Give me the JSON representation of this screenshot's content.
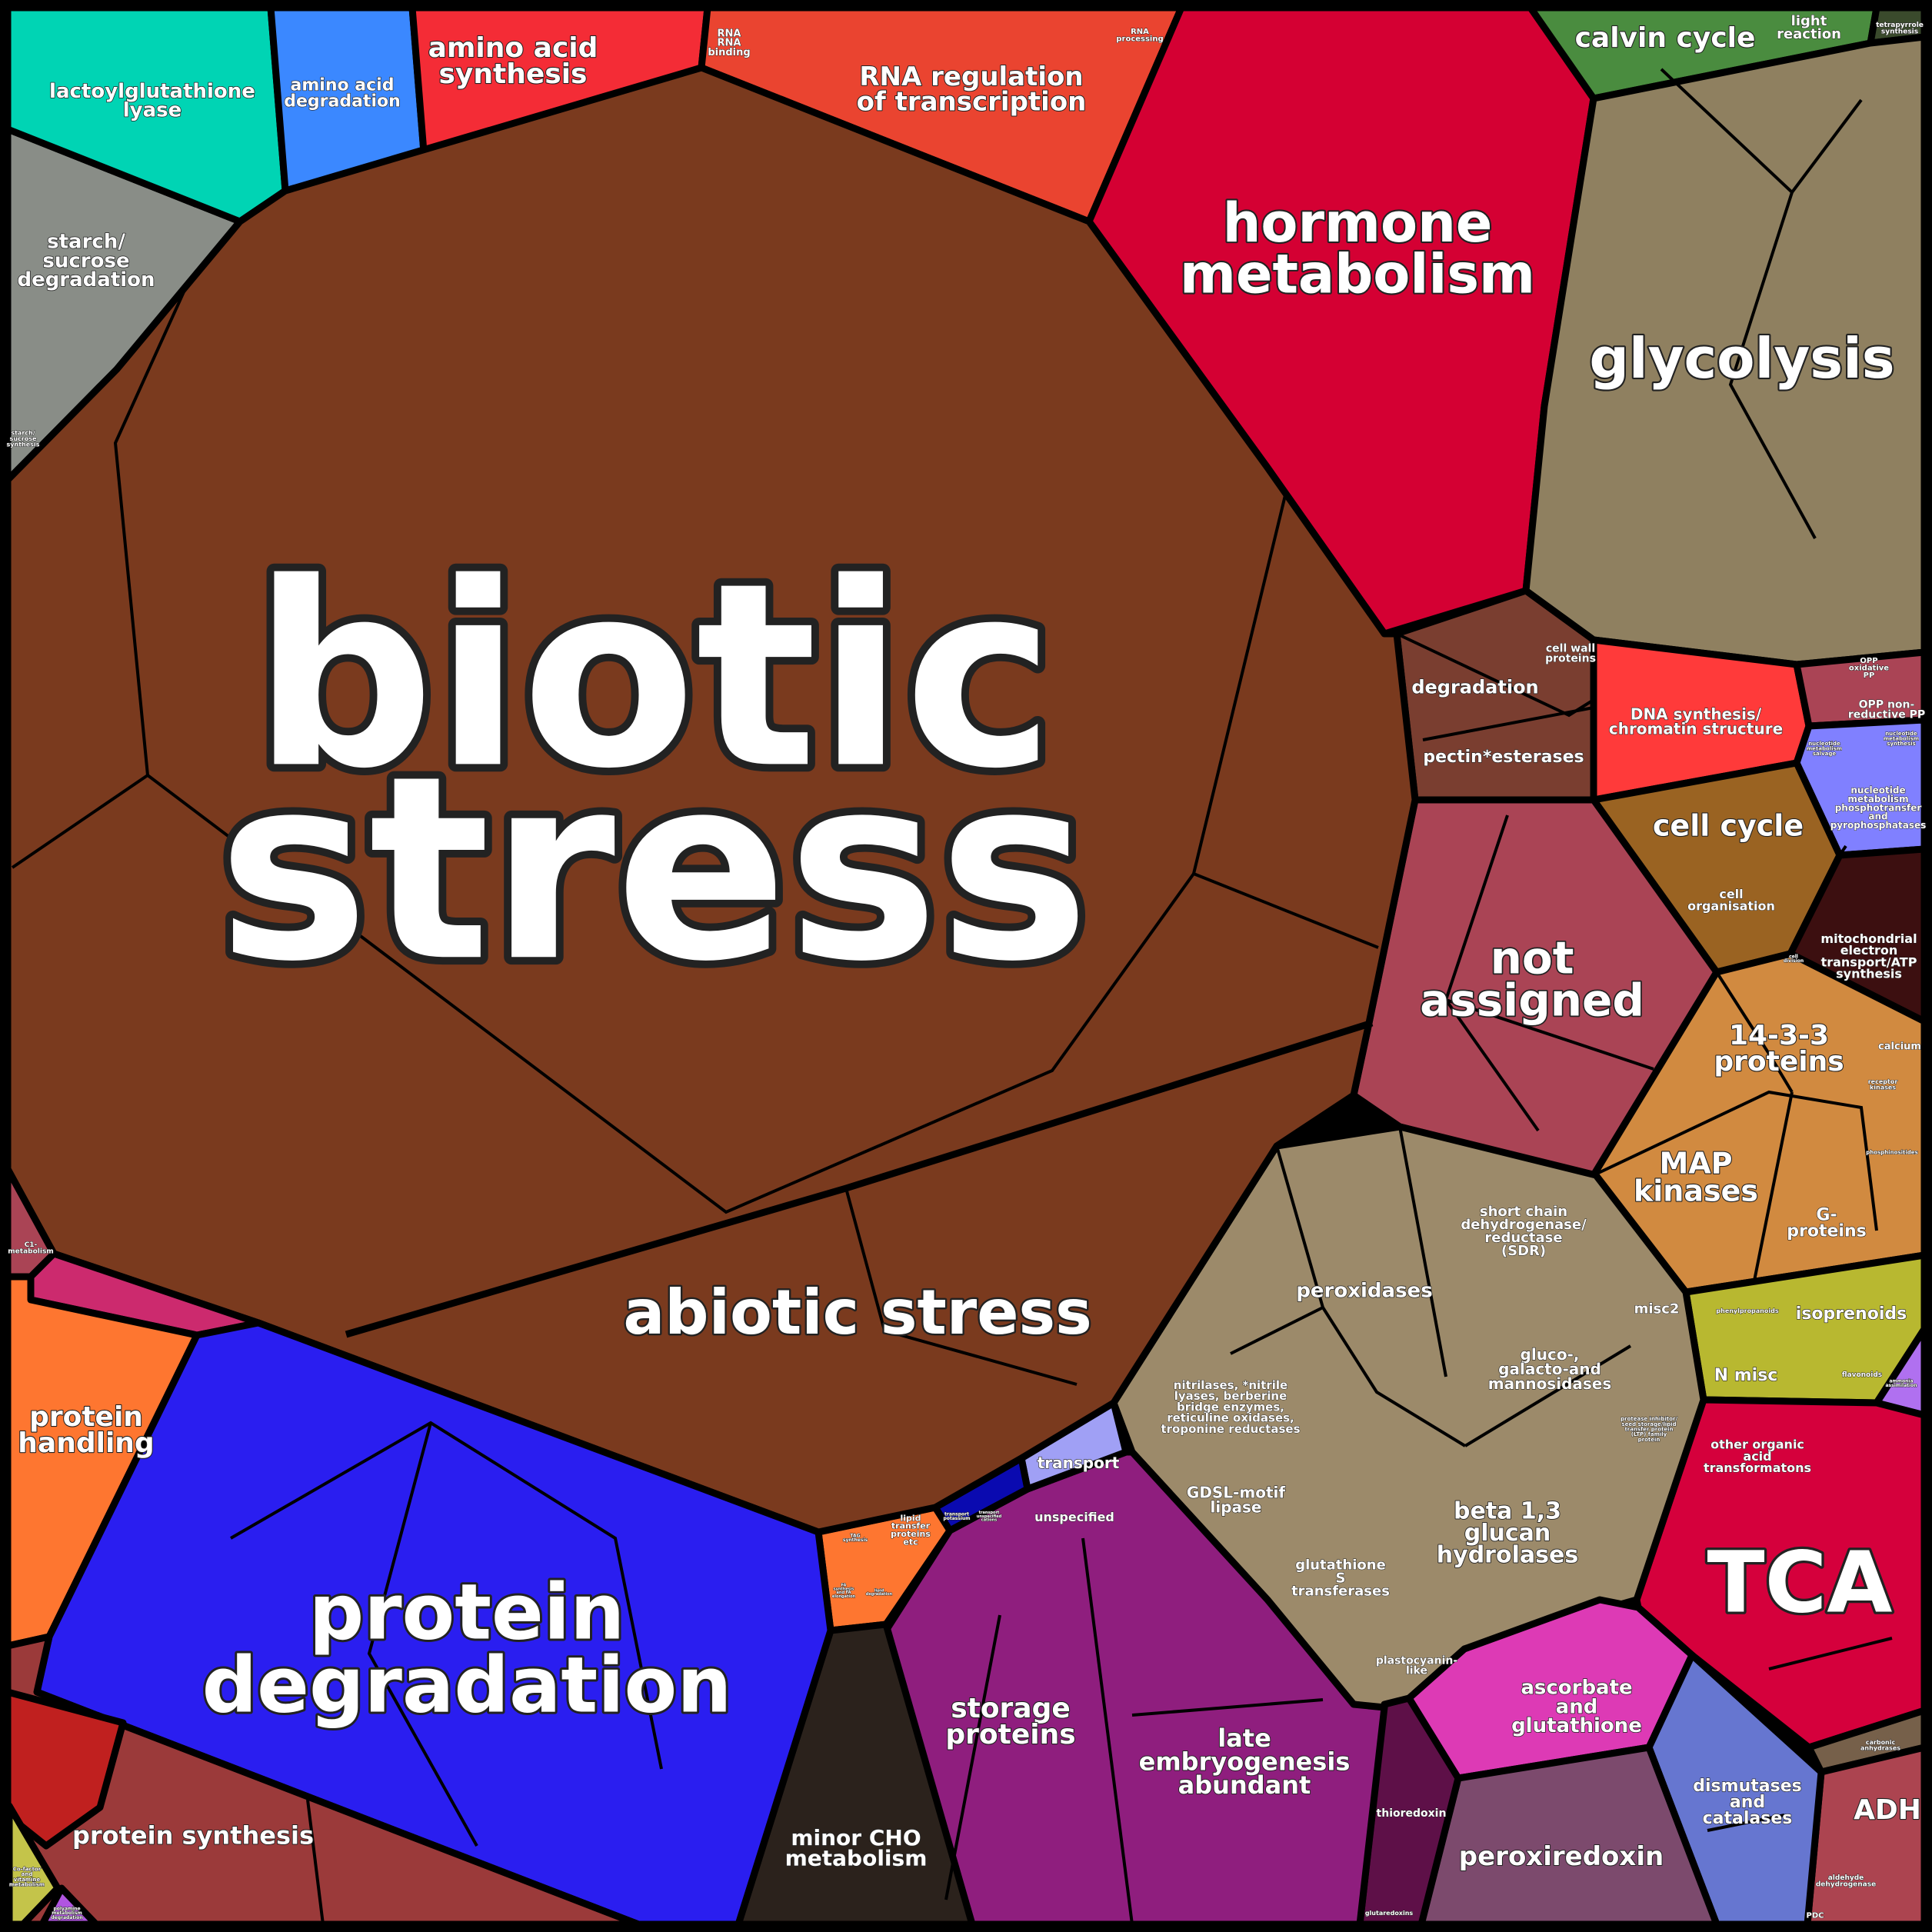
{
  "chart_data": {
    "type": "treemap",
    "subtype": "voronoi",
    "title": "",
    "cells": [
      {
        "id": "biotic-stress",
        "lines": [
          "biotic",
          "stress"
        ],
        "color": "#7a3a1e"
      },
      {
        "id": "abiotic-stress",
        "lines": [
          "abiotic stress"
        ],
        "color": "#7a3a1e"
      },
      {
        "id": "hormone-metabolism",
        "lines": [
          "hormone",
          "metabolism"
        ],
        "color": "#d40033"
      },
      {
        "id": "glycolysis",
        "lines": [
          "glycolysis"
        ],
        "color": "#8f8060"
      },
      {
        "id": "calvin-cycle",
        "lines": [
          "calvin cycle"
        ],
        "color": "#4a8c3f"
      },
      {
        "id": "light-reaction",
        "lines": [
          "light",
          "reaction"
        ],
        "color": "#4a8c3f"
      },
      {
        "id": "tetrapyrrole-synthesis",
        "lines": [
          "tetrapyrrole",
          "synthesis"
        ],
        "color": "#3a4a2c"
      },
      {
        "id": "rna-regulation",
        "lines": [
          "RNA regulation",
          "of transcription"
        ],
        "color": "#ea4430"
      },
      {
        "id": "rna-binding",
        "lines": [
          "RNA",
          "RNA",
          "binding"
        ],
        "color": "#ea4430"
      },
      {
        "id": "rna-processing",
        "lines": [
          "RNA",
          "processing"
        ],
        "color": "#ea4430"
      },
      {
        "id": "amino-acid-synthesis",
        "lines": [
          "amino acid",
          "synthesis"
        ],
        "color": "#f42c36"
      },
      {
        "id": "amino-acid-degradation",
        "lines": [
          "amino acid",
          "degradation"
        ],
        "color": "#3b88ff"
      },
      {
        "id": "lactoylglutathione-lyase",
        "lines": [
          "lactoylglutathione",
          "lyase"
        ],
        "color": "#00d4b4"
      },
      {
        "id": "starch-sucrose-degradation",
        "lines": [
          "starch/",
          "sucrose",
          "degradation"
        ],
        "color": "#898d87"
      },
      {
        "id": "starch-sucrose-synthesis",
        "lines": [
          "starch/",
          "sucrose",
          "synthesis"
        ],
        "color": "#898d87"
      },
      {
        "id": "degradation",
        "lines": [
          "degradation"
        ],
        "color": "#7a3e30"
      },
      {
        "id": "cell-wall-proteins",
        "lines": [
          "cell wall",
          "proteins"
        ],
        "color": "#7a3e30"
      },
      {
        "id": "pectin-esterases",
        "lines": [
          "pectin*esterases"
        ],
        "color": "#7a3e30"
      },
      {
        "id": "dna-synthesis",
        "lines": [
          "DNA synthesis/",
          "chromatin structure"
        ],
        "color": "#ff3a3a"
      },
      {
        "id": "opp-oxidative",
        "lines": [
          "OPP",
          "oxidative",
          "PP"
        ],
        "color": "#aa4455"
      },
      {
        "id": "opp-nonreductive",
        "lines": [
          "OPP non-",
          "reductive PP"
        ],
        "color": "#aa4455"
      },
      {
        "id": "nucleotide-salvage",
        "lines": [
          "nucleotide",
          "metabolism",
          "salvage"
        ],
        "color": "#8080ff"
      },
      {
        "id": "nucleotide-synthesis",
        "lines": [
          "nucleotide",
          "metabolism",
          "synthesis"
        ],
        "color": "#8080ff"
      },
      {
        "id": "nucleotide-phosphotransfer",
        "lines": [
          "nucleotide",
          "metabolism",
          "phosphotransfer",
          "and",
          "pyrophosphatases"
        ],
        "color": "#8080ff"
      },
      {
        "id": "cell-cycle",
        "lines": [
          "cell cycle"
        ],
        "color": "#9a6322"
      },
      {
        "id": "cell-organisation",
        "lines": [
          "cell",
          "organisation"
        ],
        "color": "#9a6322"
      },
      {
        "id": "cell-division",
        "lines": [
          "cell",
          "division"
        ],
        "color": "#9a6322"
      },
      {
        "id": "mitochondrial-electron-transport",
        "lines": [
          "mitochondrial",
          "electron",
          "transport/ATP",
          "synthesis"
        ],
        "color": "#3c0f10"
      },
      {
        "id": "not-assigned",
        "lines": [
          "not",
          "assigned"
        ],
        "color": "#aa4455"
      },
      {
        "id": "14-3-3-proteins",
        "lines": [
          "14-3-3",
          "proteins"
        ],
        "color": "#d18a40"
      },
      {
        "id": "calcium",
        "lines": [
          "calcium"
        ],
        "color": "#d18a40"
      },
      {
        "id": "receptor-kinases",
        "lines": [
          "receptor",
          "kinases"
        ],
        "color": "#d18a40"
      },
      {
        "id": "phosphinositides",
        "lines": [
          "phosphinositides"
        ],
        "color": "#d18a40"
      },
      {
        "id": "map-kinases",
        "lines": [
          "MAP",
          "kinases"
        ],
        "color": "#d18a40"
      },
      {
        "id": "g-proteins",
        "lines": [
          "G-",
          "proteins"
        ],
        "color": "#d18a40"
      },
      {
        "id": "phenylpropanoids",
        "lines": [
          "phenylpropanoids"
        ],
        "color": "#e4ac20"
      },
      {
        "id": "isoprenoids",
        "lines": [
          "isoprenoids"
        ],
        "color": "#b8b830"
      },
      {
        "id": "n-misc",
        "lines": [
          "N misc"
        ],
        "color": "#b8b830"
      },
      {
        "id": "flavonoids",
        "lines": [
          "flavonoids"
        ],
        "color": "#b8b830"
      },
      {
        "id": "ammonia-assimilation",
        "lines": [
          "ammonia",
          "assimilation"
        ],
        "color": "#b070f0"
      },
      {
        "id": "other-organic-acid",
        "lines": [
          "other organic",
          "acid",
          "transformatons"
        ],
        "color": "#d5003c"
      },
      {
        "id": "tca",
        "lines": [
          "TCA"
        ],
        "color": "#d5003c"
      },
      {
        "id": "adh",
        "lines": [
          "ADH"
        ],
        "color": "#ac4450"
      },
      {
        "id": "carbonic-anhydrases",
        "lines": [
          "carbonic",
          "anhydrases"
        ],
        "color": "#76604a"
      },
      {
        "id": "aldehyde-dehydrogenase",
        "lines": [
          "aldehyde",
          "dehydrogenase"
        ],
        "color": "#ac4450"
      },
      {
        "id": "pdc",
        "lines": [
          "PDC"
        ],
        "color": "#ac4450"
      },
      {
        "id": "dismutases-catalases",
        "lines": [
          "dismutases",
          "and",
          "catalases"
        ],
        "color": "#6676d0"
      },
      {
        "id": "peroxiredoxin",
        "lines": [
          "peroxiredoxin"
        ],
        "color": "#7c4a6d"
      },
      {
        "id": "ascorbate-glutathione",
        "lines": [
          "ascorbate",
          "and",
          "glutathione"
        ],
        "color": "#dd3ab5"
      },
      {
        "id": "thioredoxin",
        "lines": [
          "thioredoxin"
        ],
        "color": "#5e1048"
      },
      {
        "id": "glutaredoxins",
        "lines": [
          "glutaredoxins"
        ],
        "color": "#dd3ab5"
      },
      {
        "id": "plastocyanin-like",
        "lines": [
          "plastocyanin-",
          "like"
        ],
        "color": "#9c8a6a"
      },
      {
        "id": "late-embryogenesis-abundant",
        "lines": [
          "late",
          "embryogenesis",
          "abundant"
        ],
        "color": "#8f1e7e"
      },
      {
        "id": "storage-proteins",
        "lines": [
          "storage",
          "proteins"
        ],
        "color": "#8f1e7e"
      },
      {
        "id": "minor-cho-metabolism",
        "lines": [
          "minor CHO",
          "metabolism"
        ],
        "color": "#2b221c"
      },
      {
        "id": "unspecified",
        "lines": [
          "unspecified"
        ],
        "color": "#8f1e7e"
      },
      {
        "id": "transport",
        "lines": [
          "transport"
        ],
        "color": "#a0a0f5"
      },
      {
        "id": "transport-potassium",
        "lines": [
          "transport",
          "potassium"
        ],
        "color": "#0a0ab0"
      },
      {
        "id": "transport-unspecified-cations",
        "lines": [
          "transport",
          "unspecified",
          "cations"
        ],
        "color": "#0a0ab0"
      },
      {
        "id": "lipid-transfer-proteins",
        "lines": [
          "lipid",
          "transfer",
          "proteins",
          "etc"
        ],
        "color": "#fe7630"
      },
      {
        "id": "tag-synthesis",
        "lines": [
          "TAG",
          "synthesis"
        ],
        "color": "#fe7630"
      },
      {
        "id": "fa-synthesis",
        "lines": [
          "FA",
          "synthesis",
          "and FA",
          "elongation"
        ],
        "color": "#fe7630"
      },
      {
        "id": "lipid-degradation",
        "lines": [
          "lipid",
          "degradation"
        ],
        "color": "#fe7630"
      },
      {
        "id": "gdsl-motif-lipase",
        "lines": [
          "GDSL-motif",
          "lipase"
        ],
        "color": "#9c8a6a"
      },
      {
        "id": "glutathione-s-transferases",
        "lines": [
          "glutathione",
          "S",
          "transferases"
        ],
        "color": "#9c8a6a"
      },
      {
        "id": "beta-glucan-hydrolases",
        "lines": [
          "beta 1,3",
          "glucan",
          "hydrolases"
        ],
        "color": "#9c8a6a"
      },
      {
        "id": "nitrilases",
        "lines": [
          "nitrilases, *nitrile",
          "lyases, berberine",
          "bridge enzymes,",
          "reticuline oxidases,",
          "troponine reductases"
        ],
        "color": "#9c8a6a"
      },
      {
        "id": "peroxidases",
        "lines": [
          "peroxidases"
        ],
        "color": "#9c8a6a"
      },
      {
        "id": "sdr",
        "lines": [
          "short chain",
          "dehydrogenase/",
          "reductase",
          "(SDR)"
        ],
        "color": "#9c8a6a"
      },
      {
        "id": "glucosidases",
        "lines": [
          "gluco-,",
          "galacto-and",
          "mannosidases"
        ],
        "color": "#9c8a6a"
      },
      {
        "id": "misc2",
        "lines": [
          "misc2"
        ],
        "color": "#9c8a6a"
      },
      {
        "id": "protease-inhibitor",
        "lines": [
          "protease inhibitor/",
          "seed storage/lipid",
          "transfer protein",
          "(LTP) family",
          "protein"
        ],
        "color": "#9c8a6a"
      },
      {
        "id": "protein-handling",
        "lines": [
          "protein",
          "handling"
        ],
        "color": "#fe7630"
      },
      {
        "id": "protein-degradation",
        "lines": [
          "protein",
          "degradation"
        ],
        "color": "#2a1ef0"
      },
      {
        "id": "protein-synthesis",
        "lines": [
          "protein synthesis"
        ],
        "color": "#9b3a3a"
      },
      {
        "id": "c1-metabolism",
        "lines": [
          "C1-",
          "metabolism"
        ],
        "color": "#aa4455"
      },
      {
        "id": "cofactor-vitamine",
        "lines": [
          "Co-factor",
          "and",
          "vitamine",
          "metabolism"
        ],
        "color": "#c4c44a"
      },
      {
        "id": "polyamine-degradation",
        "lines": [
          "polyamine",
          "metabolism",
          "degradation"
        ],
        "color": "#b055e0"
      }
    ]
  }
}
